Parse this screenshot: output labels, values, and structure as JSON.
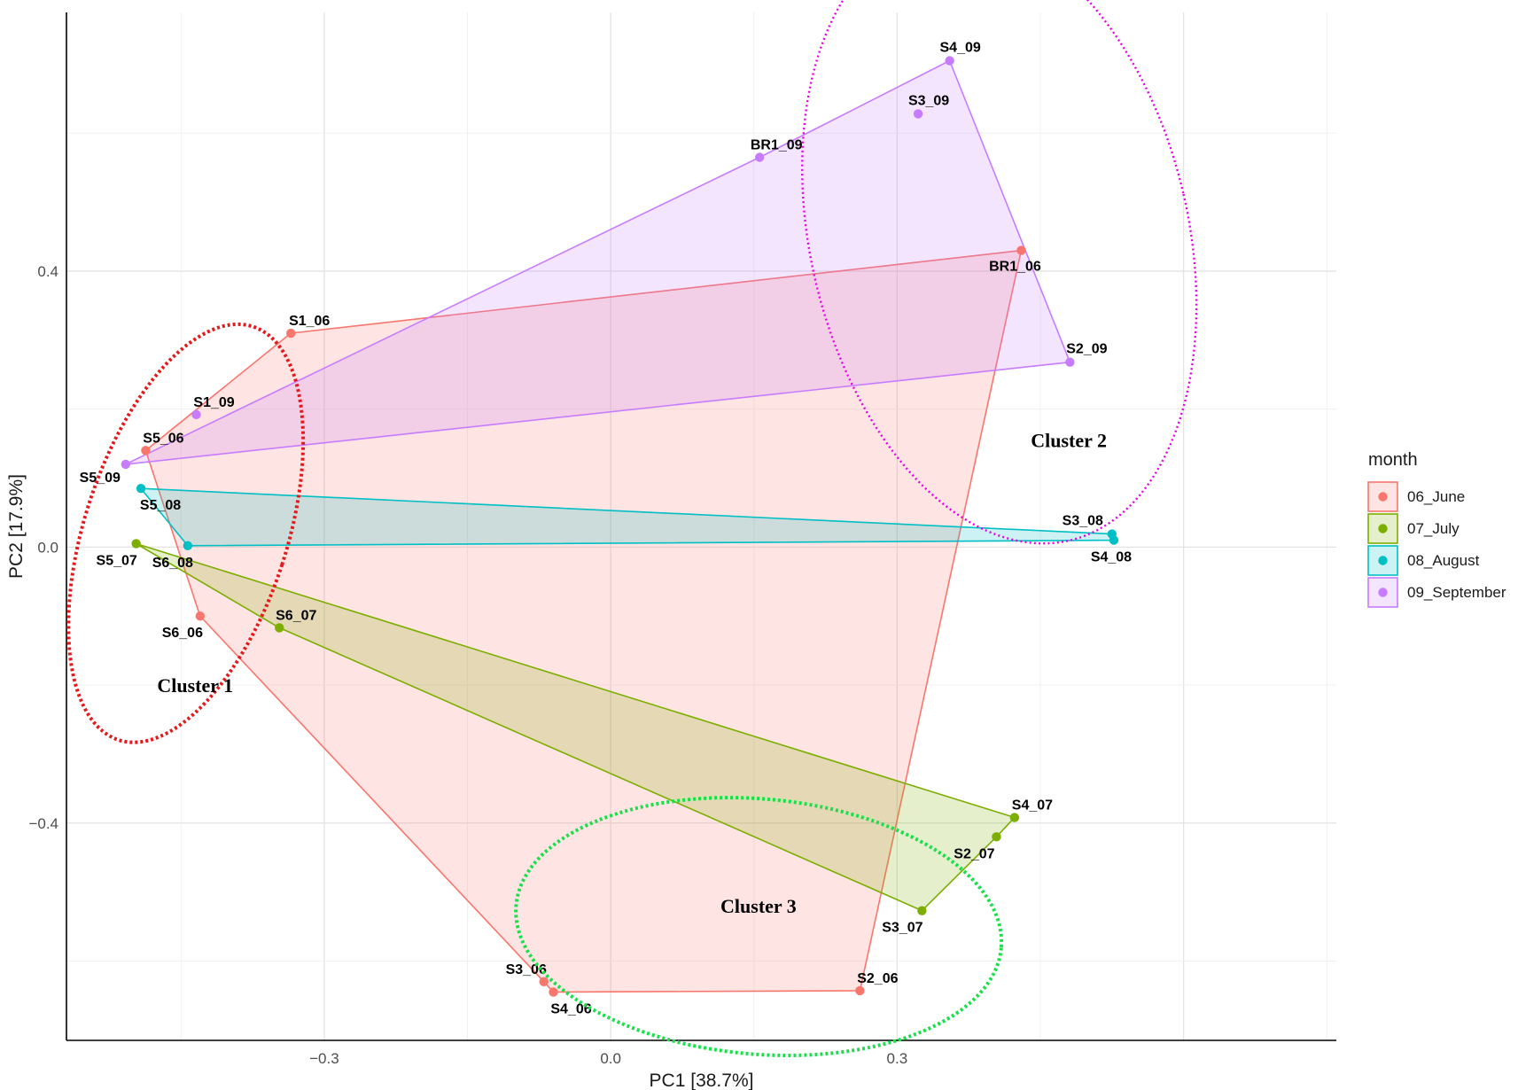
{
  "chart_data": {
    "type": "scatter",
    "xlabel": "PC1 [38.7%]",
    "ylabel": "PC2 [17.9%]",
    "xlim": [
      -0.57,
      0.76
    ],
    "ylim": [
      -0.715,
      0.775
    ],
    "x_ticks": [
      {
        "value": -0.3,
        "label": "−0.3"
      },
      {
        "value": 0.0,
        "label": "0.0"
      },
      {
        "value": 0.3,
        "label": "0.3"
      }
    ],
    "y_ticks": [
      {
        "value": -0.4,
        "label": "−0.4"
      },
      {
        "value": 0.0,
        "label": "0.0"
      },
      {
        "value": 0.4,
        "label": "0.4"
      }
    ],
    "grid": true,
    "legend": {
      "title": "month",
      "placement": "right",
      "entries": [
        "06_June",
        "07_July",
        "08_August",
        "09_September"
      ]
    },
    "series": [
      {
        "name": "06_June",
        "color": "#F8766D",
        "points": [
          {
            "label": "S1_06",
            "x": -0.335,
            "y": 0.31
          },
          {
            "label": "S5_06",
            "x": -0.487,
            "y": 0.14
          },
          {
            "label": "S6_06",
            "x": -0.43,
            "y": -0.1
          },
          {
            "label": "S3_06",
            "x": -0.07,
            "y": -0.63
          },
          {
            "label": "S4_06",
            "x": -0.06,
            "y": -0.645
          },
          {
            "label": "S2_06",
            "x": 0.261,
            "y": -0.643
          },
          {
            "label": "BR1_06",
            "x": 0.43,
            "y": 0.43
          }
        ],
        "hull": [
          "S1_06",
          "S5_06",
          "S6_06",
          "S3_06",
          "S4_06",
          "S2_06",
          "BR1_06"
        ]
      },
      {
        "name": "07_July",
        "color": "#7CAE00",
        "points": [
          {
            "label": "S5_07",
            "x": -0.497,
            "y": 0.005
          },
          {
            "label": "S6_07",
            "x": -0.347,
            "y": -0.117
          },
          {
            "label": "S3_07",
            "x": 0.326,
            "y": -0.527
          },
          {
            "label": "S2_07",
            "x": 0.404,
            "y": -0.42
          },
          {
            "label": "S4_07",
            "x": 0.423,
            "y": -0.392
          }
        ],
        "hull": [
          "S5_07",
          "S6_07",
          "S3_07",
          "S2_07",
          "S4_07"
        ]
      },
      {
        "name": "08_August",
        "color": "#00BFC4",
        "points": [
          {
            "label": "S5_08",
            "x": -0.492,
            "y": 0.085
          },
          {
            "label": "S6_08",
            "x": -0.443,
            "y": 0.002
          },
          {
            "label": "S3_08",
            "x": 0.525,
            "y": 0.019
          },
          {
            "label": "S4_08",
            "x": 0.527,
            "y": 0.01
          }
        ],
        "hull": [
          "S5_08",
          "S6_08",
          "S4_08",
          "S3_08"
        ]
      },
      {
        "name": "09_September",
        "color": "#C77CFF",
        "points": [
          {
            "label": "S5_09",
            "x": -0.508,
            "y": 0.12
          },
          {
            "label": "S1_09",
            "x": -0.434,
            "y": 0.192
          },
          {
            "label": "BR1_09",
            "x": 0.156,
            "y": 0.565
          },
          {
            "label": "S3_09",
            "x": 0.322,
            "y": 0.628
          },
          {
            "label": "S4_09",
            "x": 0.355,
            "y": 0.705
          },
          {
            "label": "S2_09",
            "x": 0.481,
            "y": 0.268
          }
        ],
        "hull": [
          "S5_09",
          "BR1_09",
          "S4_09",
          "S2_09"
        ]
      }
    ],
    "annotations": [
      {
        "text": "Cluster 1",
        "x": -0.475,
        "y": -0.21,
        "color": "#E31A1C"
      },
      {
        "text": "Cluster 2",
        "x": 0.44,
        "y": 0.145,
        "color": "#E600E6"
      },
      {
        "text": "Cluster 3",
        "x": 0.115,
        "y": -0.53,
        "color": "#19E04A"
      }
    ],
    "cluster_ellipses": [
      {
        "name": "Cluster 1",
        "color": "#E31A1C",
        "cx": -0.445,
        "cy": 0.02,
        "rx": 0.106,
        "ry": 0.315,
        "angle": 18
      },
      {
        "name": "Cluster 2",
        "color": "#E600E6",
        "cx": 0.407,
        "cy": 0.45,
        "rx": 0.198,
        "ry": 0.452,
        "angle": -13
      },
      {
        "name": "Cluster 3",
        "color": "#19E04A",
        "cx": 0.155,
        "cy": -0.55,
        "rx": 0.255,
        "ry": 0.185,
        "angle": 5
      }
    ]
  }
}
